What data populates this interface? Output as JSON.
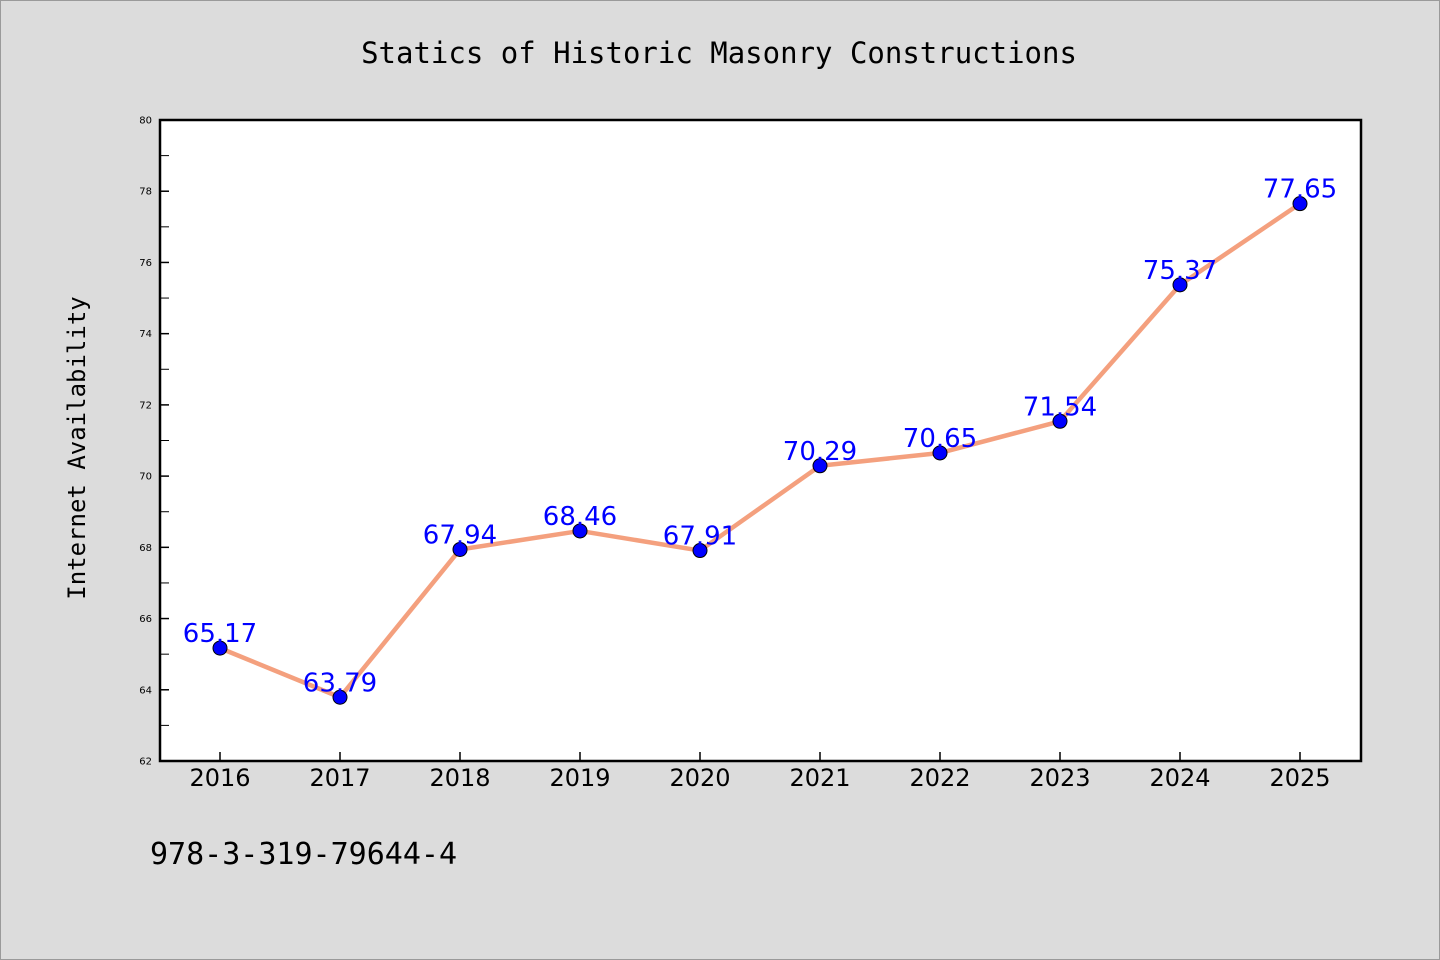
{
  "chart_data": {
    "type": "line",
    "title": "Statics of Historic Masonry Constructions",
    "xlabel": "",
    "ylabel": "Internet Availability",
    "x": [
      "2016",
      "2017",
      "2018",
      "2019",
      "2020",
      "2021",
      "2022",
      "2023",
      "2024",
      "2025"
    ],
    "series": [
      {
        "values": [
          65.17,
          63.79,
          67.94,
          68.46,
          67.91,
          70.29,
          70.65,
          71.54,
          75.37,
          77.65
        ],
        "labels": [
          "65.17",
          "63.79",
          "67.94",
          "68.46",
          "67.91",
          "70.29",
          "70.65",
          "71.54",
          "75.37",
          "77.65"
        ],
        "line_color": "#f4a07e",
        "marker_color": "#0000ff"
      }
    ],
    "ylim": [
      62,
      80
    ],
    "yticks": [
      62,
      64,
      66,
      68,
      70,
      72,
      74,
      76,
      78,
      80
    ],
    "grid": false,
    "legend": "none"
  },
  "footer": {
    "isbn": "978-3-319-79644-4"
  }
}
